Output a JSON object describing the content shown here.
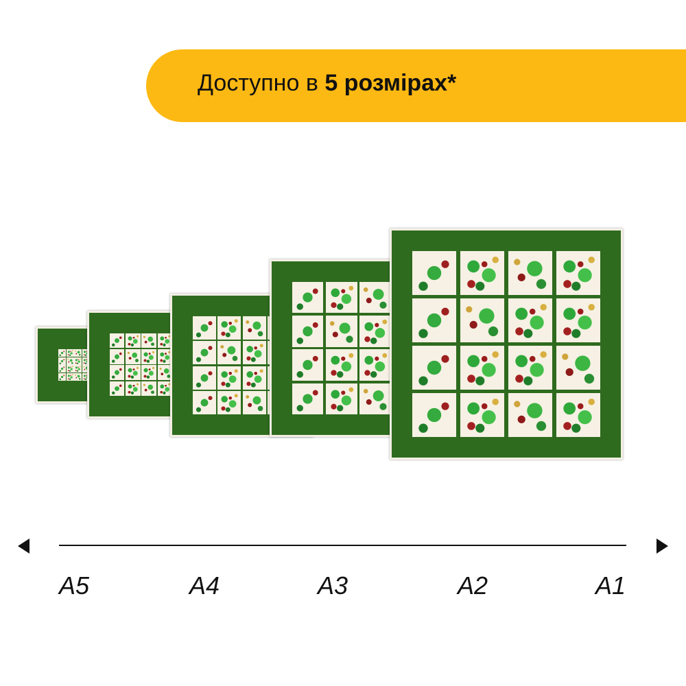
{
  "banner": {
    "prefix": "Доступно в ",
    "bold": "5 розмірах*",
    "color": "#FDB913"
  },
  "puzzles": [
    {
      "size": "A5"
    },
    {
      "size": "A4"
    },
    {
      "size": "A3"
    },
    {
      "size": "A2"
    },
    {
      "size": "A1"
    }
  ],
  "axis": {
    "left_icon": "triangle-left-icon",
    "right_icon": "triangle-right-icon",
    "labels": [
      "A5",
      "A4",
      "A3",
      "A2",
      "A1"
    ]
  }
}
